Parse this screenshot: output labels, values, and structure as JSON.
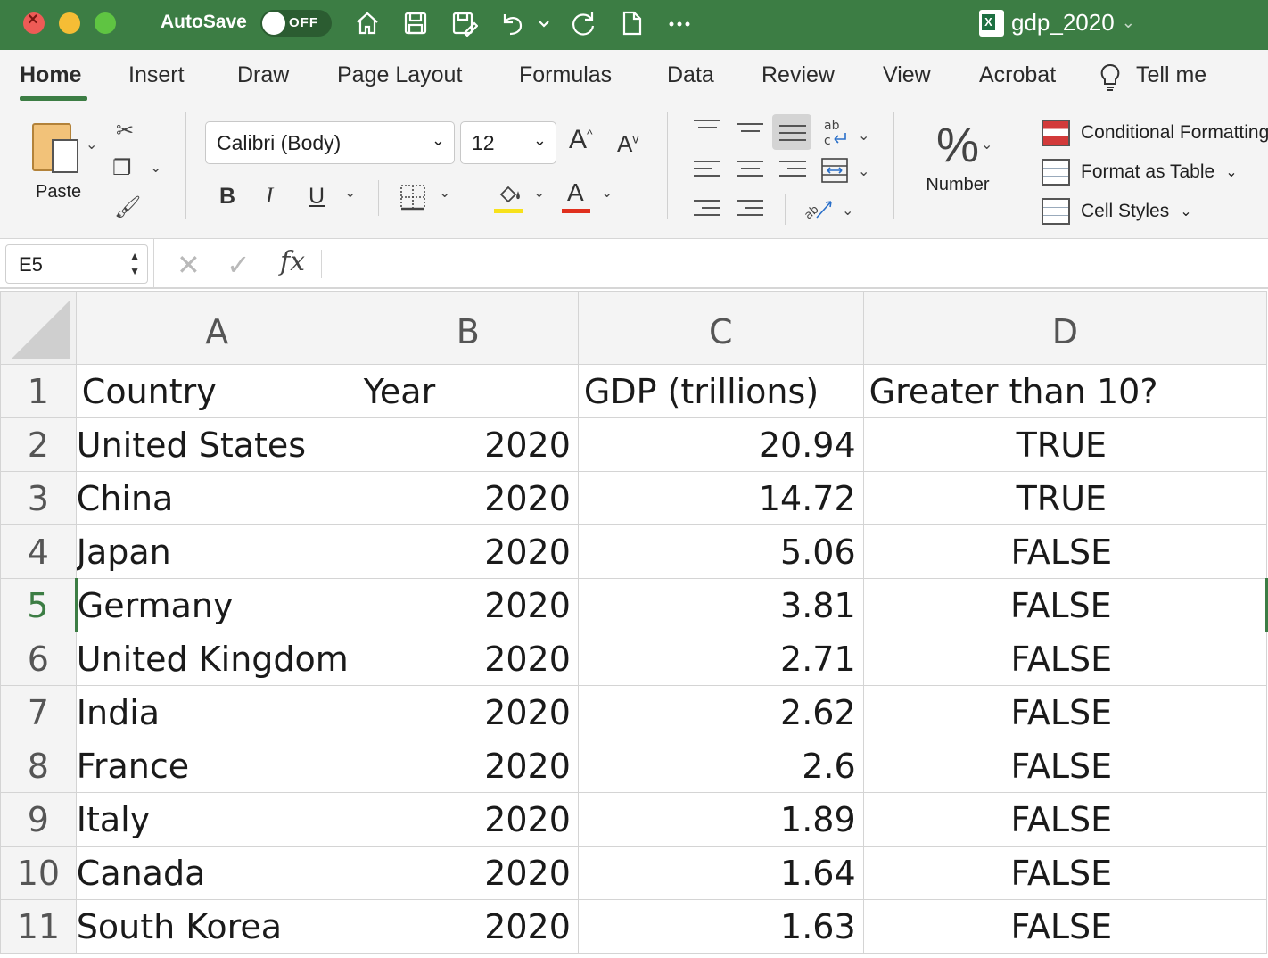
{
  "window": {
    "autosave_label": "AutoSave",
    "autosave_state": "OFF",
    "document_name": "gdp_2020"
  },
  "ribbon": {
    "tabs": [
      "Home",
      "Insert",
      "Draw",
      "Page Layout",
      "Formulas",
      "Data",
      "Review",
      "View",
      "Acrobat"
    ],
    "tell_me": "Tell me",
    "paste_label": "Paste",
    "font_name": "Calibri (Body)",
    "font_size": "12",
    "bold": "B",
    "italic": "I",
    "underline": "U",
    "grow_font": "A",
    "shrink_font": "A",
    "font_color_glyph": "A",
    "number_label": "Number",
    "number_glyph": "%",
    "styles": {
      "conditional_formatting": "Conditional Formatting",
      "format_as_table": "Format as Table",
      "cell_styles": "Cell Styles"
    },
    "highlight_color": "#f7e11b",
    "font_color": "#e0301e"
  },
  "formula_bar": {
    "cell_ref": "E5",
    "fx": "fx",
    "content": ""
  },
  "sheet": {
    "columns": [
      "A",
      "B",
      "C",
      "D"
    ],
    "row_numbers": [
      "1",
      "2",
      "3",
      "4",
      "5",
      "6",
      "7",
      "8",
      "9",
      "10",
      "11"
    ],
    "active_row": "5",
    "rows": [
      [
        "Country",
        "Year",
        "GDP (trillions)",
        "Greater than 10?"
      ],
      [
        "United States",
        "2020",
        "20.94",
        "TRUE"
      ],
      [
        "China",
        "2020",
        "14.72",
        "TRUE"
      ],
      [
        "Japan",
        "2020",
        "5.06",
        "FALSE"
      ],
      [
        "Germany",
        "2020",
        "3.81",
        "FALSE"
      ],
      [
        "United Kingdom",
        "2020",
        "2.71",
        "FALSE"
      ],
      [
        "India",
        "2020",
        "2.62",
        "FALSE"
      ],
      [
        "France",
        "2020",
        "2.6",
        "FALSE"
      ],
      [
        "Italy",
        "2020",
        "1.89",
        "FALSE"
      ],
      [
        "Canada",
        "2020",
        "1.64",
        "FALSE"
      ],
      [
        "South Korea",
        "2020",
        "1.63",
        "FALSE"
      ]
    ]
  },
  "colors": {
    "title_bar": "#3c7d44",
    "accent": "#3c7d44"
  },
  "icons": [
    "home-icon",
    "save-icon",
    "save-as-icon",
    "undo-icon",
    "redo-icon",
    "new-file-icon",
    "more-icon",
    "lightbulb-icon",
    "cut-icon",
    "copy-icon",
    "format-painter-icon",
    "borders-icon",
    "fill-color-icon",
    "font-color-icon",
    "wrap-text-icon",
    "merge-icon",
    "orientation-icon"
  ]
}
